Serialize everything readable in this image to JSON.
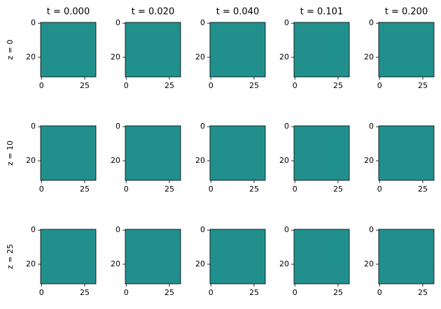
{
  "chart_data": {
    "type": "image-grid",
    "columns": [
      "t = 0.000",
      "t = 0.020",
      "t = 0.040",
      "t = 0.101",
      "t = 0.200"
    ],
    "rows": [
      "z = 0",
      "z = 10",
      "z = 25"
    ],
    "xlim": [
      -0.5,
      31.5
    ],
    "ylim": [
      -0.5,
      31.5
    ],
    "xticks": [
      0,
      25
    ],
    "yticks": [
      0,
      20
    ],
    "color": "#21908d"
  }
}
